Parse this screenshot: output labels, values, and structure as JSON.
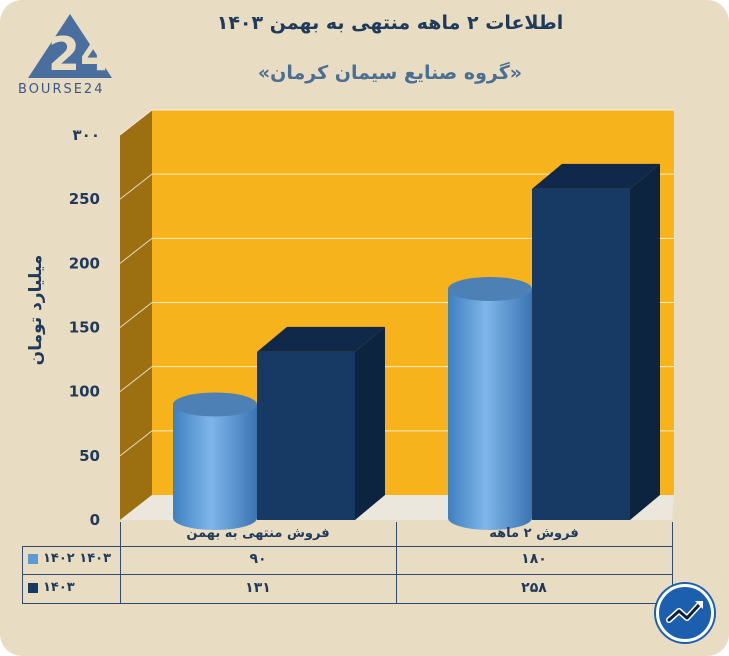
{
  "title": "اطلاعات ۲ ماهه منتهی به بهمن ۱۴۰۳",
  "subtitle": "«گروه صنایع سیمان کرمان»",
  "brand": "BOURSE24",
  "chart_data": {
    "type": "bar",
    "ylabel": "میلیارد تومان",
    "ylim": [
      0,
      300
    ],
    "yticks": [
      0,
      50,
      100,
      150,
      200,
      250,
      300
    ],
    "ytick_labels": [
      "0",
      "50",
      "100",
      "150",
      "200",
      "250",
      "۳۰۰"
    ],
    "categories": [
      "فروش منتهی به  بهمن",
      "فروش ۲  ماهه"
    ],
    "series": [
      {
        "name": "۱۴۰۲ ۱۴۰۳",
        "values": [
          90,
          180
        ],
        "value_labels": [
          "۹۰",
          "۱۸۰"
        ],
        "color": "#5b9bd5"
      },
      {
        "name": "۱۴۰۳",
        "values": [
          131,
          258
        ],
        "value_labels": [
          "۱۳۱",
          "۲۵۸"
        ],
        "color": "#163a63"
      }
    ],
    "grid": true,
    "legend": "table-left",
    "plot_background": "#f7b31b"
  }
}
